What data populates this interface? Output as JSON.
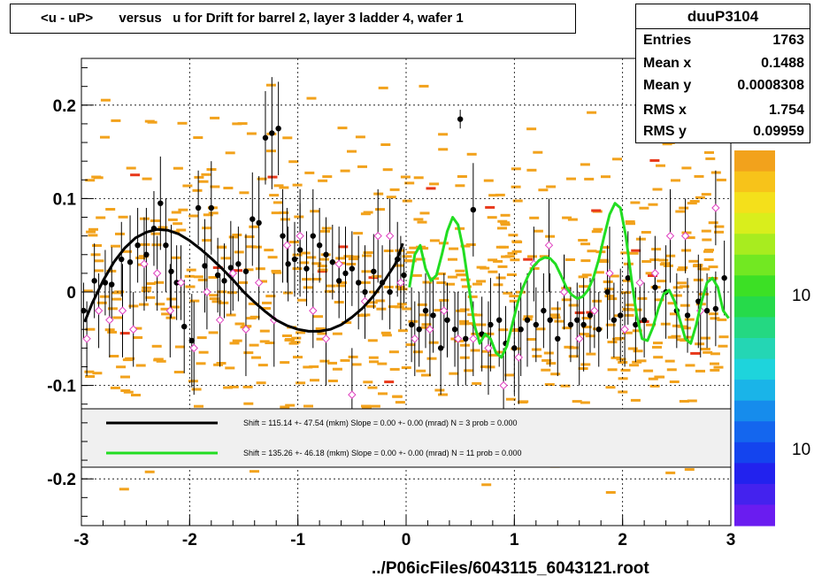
{
  "title": "<u - uP>       versus   u for Drift for barrel 2, layer 3 ladder 4, wafer 1",
  "stats": {
    "name": "duuP3104",
    "rows": [
      {
        "label": "Entries",
        "value": "1763"
      },
      {
        "label": "Mean x",
        "value": "0.1488"
      },
      {
        "label": "Mean y",
        "value": "0.0008308"
      },
      {
        "label": "RMS x",
        "value": "1.754"
      },
      {
        "label": "RMS y",
        "value": "0.09959"
      }
    ]
  },
  "legend": [
    {
      "color": "#000000",
      "text": "Shift =   115.14 +- 47.54 (mkm) Slope =     0.00 +- 0.00 (mrad)  N = 3 prob = 0.000"
    },
    {
      "color": "#22dd22",
      "text": "Shift =   135.26 +- 46.18 (mkm) Slope =     0.00 +- 0.00 (mrad)  N = 11 prob = 0.000"
    }
  ],
  "footer": "../P06icFiles/6043115_6043121.root",
  "colorbar_labels": [
    "10",
    "10"
  ],
  "chart_data": {
    "type": "scatter",
    "xlim": [
      -3,
      3
    ],
    "ylim": [
      -0.25,
      0.25
    ],
    "x_ticks": [
      "-3",
      "-2",
      "-1",
      "0",
      "1",
      "2",
      "3"
    ],
    "y_ticks": [
      {
        "v": 0.2,
        "label": "0.2"
      },
      {
        "v": 0.1,
        "label": "0.1"
      },
      {
        "v": 0,
        "label": "0"
      },
      {
        "v": -0.1,
        "label": "-0.1"
      },
      {
        "v": -0.2,
        "label": "-0.2"
      }
    ],
    "grid": true,
    "series": [
      {
        "style": "profile-black",
        "x": [
          -2.98,
          -2.88,
          -2.78,
          -2.72,
          -2.63,
          -2.55,
          -2.48,
          -2.4,
          -2.33,
          -2.27,
          -2.22,
          -2.17,
          -2.12,
          -2.05,
          -1.98,
          -1.92,
          -1.86,
          -1.8,
          -1.74,
          -1.68,
          -1.62,
          -1.55,
          -1.48,
          -1.42,
          -1.36,
          -1.3,
          -1.24,
          -1.18,
          -1.14,
          -1.09,
          -1.03,
          -0.98,
          -0.92,
          -0.86,
          -0.8,
          -0.74,
          -0.68,
          -0.62,
          -0.56,
          -0.5,
          -0.44,
          -0.38,
          -0.3,
          -0.22,
          -0.15,
          -0.08,
          -0.02
        ],
        "y": [
          -0.02,
          0.012,
          0.01,
          0.008,
          0.035,
          0.032,
          0.05,
          0.04,
          0.068,
          0.095,
          0.05,
          0.022,
          0.01,
          -0.037,
          -0.052,
          0.09,
          0.028,
          0.09,
          0.018,
          0.012,
          0.026,
          0.03,
          0.022,
          0.078,
          0.074,
          0.165,
          0.17,
          0.175,
          0.06,
          0.03,
          0.035,
          0.045,
          0.025,
          0.06,
          0.05,
          0.04,
          0.032,
          0.012,
          0.02,
          0.025,
          0.01,
          0.0,
          0.022,
          0.01,
          0.0,
          0.035,
          0.018
        ],
        "err": [
          0.03,
          0.04,
          0.035,
          0.04,
          0.04,
          0.05,
          0.04,
          0.05,
          0.04,
          0.05,
          0.05,
          0.05,
          0.04,
          0.05,
          0.05,
          0.04,
          0.05,
          0.05,
          0.04,
          0.04,
          0.05,
          0.04,
          0.04,
          0.05,
          0.05,
          0.05,
          0.06,
          0.05,
          0.05,
          0.04,
          0.04,
          0.05,
          0.04,
          0.05,
          0.04,
          0.04,
          0.04,
          0.04,
          0.05,
          0.04,
          0.05,
          0.05,
          0.04,
          0.04,
          0.04,
          0.04,
          0.03
        ]
      },
      {
        "style": "profile-black",
        "x": [
          0.05,
          0.12,
          0.18,
          0.25,
          0.32,
          0.38,
          0.45,
          0.5,
          0.55,
          0.62,
          0.7,
          0.78,
          0.86,
          0.92,
          1.0,
          1.06,
          1.12,
          1.2,
          1.27,
          1.33,
          1.4,
          1.46,
          1.52,
          1.58,
          1.64,
          1.7,
          1.78,
          1.86,
          1.92,
          1.98,
          2.05,
          2.12,
          2.2,
          2.3,
          2.4,
          2.5,
          2.6,
          2.7,
          2.78,
          2.86,
          2.94
        ],
        "y": [
          -0.035,
          -0.04,
          -0.02,
          -0.025,
          -0.06,
          -0.03,
          -0.04,
          0.185,
          -0.05,
          0.088,
          -0.045,
          -0.035,
          -0.03,
          -0.055,
          -0.06,
          -0.04,
          -0.03,
          -0.035,
          -0.02,
          -0.03,
          -0.05,
          0.0,
          -0.035,
          -0.03,
          -0.035,
          -0.025,
          -0.04,
          0.0,
          -0.03,
          -0.025,
          0.015,
          -0.035,
          -0.03,
          0.005,
          0.0,
          -0.02,
          -0.025,
          -0.01,
          -0.02,
          -0.018,
          0.015
        ],
        "err": [
          0.04,
          0.04,
          0.04,
          0.04,
          0.05,
          0.04,
          0.04,
          0.01,
          0.05,
          0.05,
          0.04,
          0.05,
          0.05,
          0.04,
          0.05,
          0.05,
          0.05,
          0.04,
          0.04,
          0.05,
          0.04,
          0.04,
          0.04,
          0.04,
          0.05,
          0.04,
          0.04,
          0.05,
          0.04,
          0.05,
          0.05,
          0.04,
          0.04,
          0.04,
          0.05,
          0.04,
          0.04,
          0.05,
          0.04,
          0.04,
          0.04
        ]
      },
      {
        "style": "profile-pink",
        "x": [
          -2.95,
          -2.84,
          -2.74,
          -2.62,
          -2.52,
          -2.42,
          -2.3,
          -2.18,
          -2.08,
          -1.96,
          -1.84,
          -1.72,
          -1.6,
          -1.48,
          -1.36,
          -1.22,
          -1.1,
          -0.98,
          -0.86,
          -0.74,
          -0.62,
          -0.5,
          -0.38,
          -0.26,
          -0.15,
          -0.05,
          0.08,
          0.22,
          0.35,
          0.48,
          0.62,
          0.76,
          0.9,
          1.04,
          1.18,
          1.32,
          1.46,
          1.6,
          1.74,
          1.88,
          2.02,
          2.16,
          2.3,
          2.44,
          2.58,
          2.72,
          2.86
        ],
        "y": [
          -0.05,
          -0.02,
          -0.03,
          -0.02,
          -0.04,
          0.03,
          0.02,
          -0.02,
          0.01,
          -0.06,
          0.0,
          -0.03,
          0.02,
          -0.04,
          0.01,
          -0.03,
          0.05,
          0.06,
          -0.02,
          -0.05,
          0.03,
          -0.11,
          -0.01,
          0.06,
          0.06,
          0.01,
          -0.05,
          -0.04,
          -0.02,
          -0.05,
          -0.05,
          -0.06,
          -0.1,
          -0.07,
          0.03,
          0.05,
          0.0,
          -0.05,
          -0.02,
          0.02,
          -0.04,
          0.01,
          0.02,
          0.06,
          0.06,
          -0.02,
          0.09
        ],
        "err": [
          0.04,
          0.04,
          0.04,
          0.05,
          0.04,
          0.05,
          0.04,
          0.05,
          0.04,
          0.05,
          0.04,
          0.05,
          0.04,
          0.05,
          0.04,
          0.05,
          0.04,
          0.05,
          0.04,
          0.05,
          0.04,
          0.05,
          0.04,
          0.05,
          0.04,
          0.05,
          0.04,
          0.05,
          0.04,
          0.05,
          0.04,
          0.05,
          0.04,
          0.05,
          0.04,
          0.05,
          0.04,
          0.05,
          0.04,
          0.05,
          0.04,
          0.05,
          0.04,
          0.05,
          0.04,
          0.05,
          0.04
        ]
      },
      {
        "style": "fit-black",
        "name": "fit N = 3",
        "x": [
          -2.97,
          -2.9,
          -2.8,
          -2.7,
          -2.6,
          -2.5,
          -2.4,
          -2.3,
          -2.2,
          -2.1,
          -2.0,
          -1.9,
          -1.8,
          -1.7,
          -1.6,
          -1.5,
          -1.4,
          -1.3,
          -1.2,
          -1.1,
          -1.0,
          -0.9,
          -0.8,
          -0.7,
          -0.6,
          -0.5,
          -0.4,
          -0.3,
          -0.2,
          -0.1,
          -0.03
        ],
        "y": [
          -0.032,
          -0.012,
          0.012,
          0.032,
          0.047,
          0.058,
          0.064,
          0.067,
          0.066,
          0.062,
          0.055,
          0.046,
          0.036,
          0.025,
          0.013,
          0.0,
          -0.011,
          -0.021,
          -0.03,
          -0.036,
          -0.04,
          -0.042,
          -0.042,
          -0.04,
          -0.035,
          -0.027,
          -0.017,
          -0.004,
          0.012,
          0.03,
          0.052
        ]
      },
      {
        "style": "fit-green",
        "name": "fit N = 11",
        "x": [
          0.03,
          0.08,
          0.13,
          0.18,
          0.23,
          0.28,
          0.33,
          0.38,
          0.43,
          0.48,
          0.53,
          0.58,
          0.63,
          0.68,
          0.73,
          0.78,
          0.83,
          0.88,
          0.93,
          0.98,
          1.03,
          1.08,
          1.13,
          1.18,
          1.23,
          1.28,
          1.33,
          1.38,
          1.43,
          1.48,
          1.53,
          1.58,
          1.63,
          1.68,
          1.73,
          1.78,
          1.83,
          1.88,
          1.93,
          1.98,
          2.03,
          2.08,
          2.13,
          2.18,
          2.23,
          2.28,
          2.33,
          2.38,
          2.43,
          2.48,
          2.53,
          2.58,
          2.63,
          2.68,
          2.73,
          2.78,
          2.83,
          2.88,
          2.93,
          2.98
        ],
        "y": [
          0.005,
          0.04,
          0.05,
          0.025,
          0.012,
          0.018,
          0.04,
          0.065,
          0.08,
          0.072,
          0.045,
          0.005,
          -0.035,
          -0.055,
          -0.045,
          -0.05,
          -0.065,
          -0.07,
          -0.058,
          -0.035,
          -0.012,
          0.005,
          0.018,
          0.028,
          0.034,
          0.037,
          0.036,
          0.03,
          0.018,
          0.005,
          -0.003,
          -0.007,
          -0.005,
          0.002,
          0.015,
          0.035,
          0.06,
          0.083,
          0.095,
          0.09,
          0.06,
          0.015,
          -0.025,
          -0.05,
          -0.052,
          -0.038,
          -0.018,
          -0.002,
          0.002,
          -0.01,
          -0.03,
          -0.05,
          -0.055,
          -0.035,
          -0.01,
          0.01,
          0.015,
          0.005,
          -0.02,
          -0.028
        ]
      }
    ]
  }
}
